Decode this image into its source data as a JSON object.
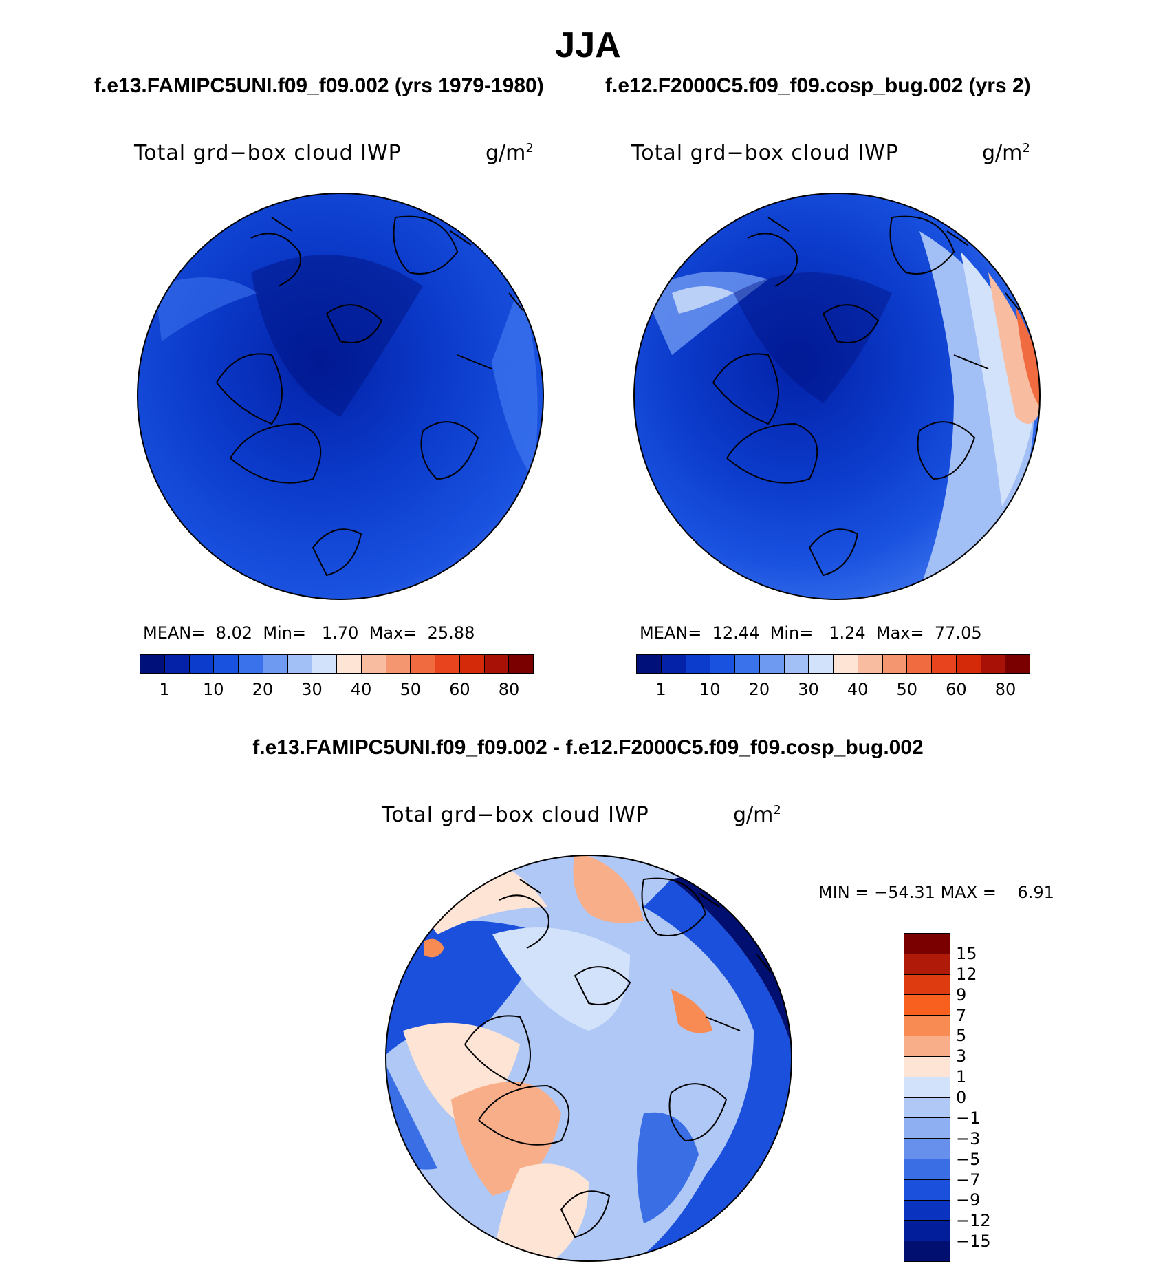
{
  "season": "JJA",
  "left_header": "f.e13.FAMIPC5UNI.f09_f09.002 (yrs 1979-1980)",
  "right_header": "f.e12.F2000C5.f09_f09.cosp_bug.002 (yrs 2)",
  "diff_header": "f.e13.FAMIPC5UNI.f09_f09.002 - f.e12.F2000C5.f09_f09.cosp_bug.002",
  "variable": "Total grd−box cloud IWP",
  "units_base": "g/m",
  "units_exp": "2",
  "panels": {
    "left": {
      "mean_label": "MEAN=",
      "mean": "8.02",
      "min_label": "Min=",
      "min": "1.70",
      "max_label": "Max=",
      "max": "25.88"
    },
    "right": {
      "mean_label": "MEAN=",
      "mean": "12.44",
      "min_label": "Min=",
      "min": "1.24",
      "max_label": "Max=",
      "max": "77.05"
    },
    "diff": {
      "min_label": "MIN =",
      "min": "−54.31",
      "max_label": "MAX =",
      "max": "6.91"
    }
  },
  "abs_colorbar": {
    "colors": [
      "#00107a",
      "#0322a8",
      "#0c3ccc",
      "#1a52e0",
      "#3a72ec",
      "#6f9af2",
      "#a3c0f6",
      "#d2e2fa",
      "#fde4d4",
      "#f8bca0",
      "#f49670",
      "#f06c40",
      "#e8441e",
      "#d42a0a",
      "#a81206",
      "#7a0000"
    ],
    "tick_labels": [
      "1",
      "10",
      "20",
      "30",
      "40",
      "50",
      "60",
      "80"
    ]
  },
  "diff_colorbar": {
    "colors": [
      "#7a0000",
      "#b01a08",
      "#de3c10",
      "#f86020",
      "#f88a54",
      "#f8ae88",
      "#fde4d4",
      "#d2e2fa",
      "#b0c8f6",
      "#8eb0f2",
      "#6690ec",
      "#3a6ee4",
      "#1a50dc",
      "#0a34c0",
      "#031e9a",
      "#000f70"
    ],
    "tick_labels": [
      "15",
      "12",
      "9",
      "7",
      "5",
      "3",
      "1",
      "0",
      "−1",
      "−3",
      "−5",
      "−7",
      "−9",
      "−12",
      "−15"
    ]
  },
  "chart_data": [
    {
      "type": "heatmap",
      "title": "Total grd−box cloud IWP",
      "subtitle": "f.e13.FAMIPC5UNI.f09_f09.002 (yrs 1979-1980)",
      "units": "g/m2",
      "projection": "north polar stereographic",
      "mean": 8.02,
      "min": 1.7,
      "max": 25.88,
      "contour_levels": [
        1,
        5,
        10,
        15,
        20,
        25,
        30,
        35,
        40,
        45,
        50,
        55,
        60,
        70,
        80
      ]
    },
    {
      "type": "heatmap",
      "title": "Total grd−box cloud IWP",
      "subtitle": "f.e12.F2000C5.f09_f09.cosp_bug.002 (yrs 2)",
      "units": "g/m2",
      "projection": "north polar stereographic",
      "mean": 12.44,
      "min": 1.24,
      "max": 77.05,
      "contour_levels": [
        1,
        5,
        10,
        15,
        20,
        25,
        30,
        35,
        40,
        45,
        50,
        55,
        60,
        70,
        80
      ]
    },
    {
      "type": "heatmap",
      "title": "Total grd−box cloud IWP",
      "subtitle": "f.e13.FAMIPC5UNI.f09_f09.002 - f.e12.F2000C5.f09_f09.cosp_bug.002",
      "units": "g/m2",
      "projection": "north polar stereographic",
      "min": -54.31,
      "max": 6.91,
      "contour_levels": [
        -15,
        -12,
        -9,
        -7,
        -5,
        -3,
        -1,
        0,
        1,
        3,
        5,
        7,
        9,
        12,
        15
      ]
    }
  ]
}
